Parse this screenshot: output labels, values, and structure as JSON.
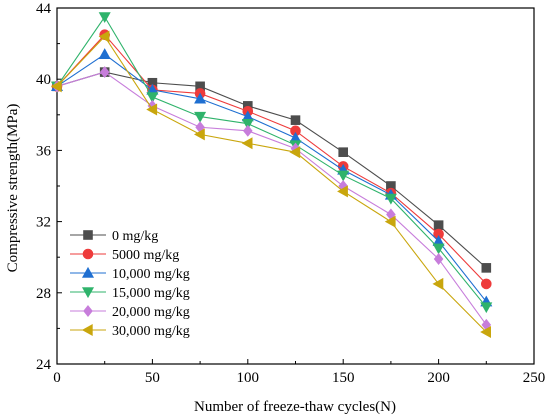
{
  "chart_data": {
    "type": "line",
    "title": "",
    "xlabel": "Number of freeze-thaw cycles(N)",
    "ylabel": "Compressive strength(MPa)",
    "xlim": [
      0,
      250
    ],
    "ylim": [
      24,
      44
    ],
    "xticks": [
      "0",
      "50",
      "100",
      "150",
      "200",
      "250"
    ],
    "yticks": [
      "24",
      "28",
      "32",
      "36",
      "40",
      "44"
    ],
    "x": [
      0,
      25,
      50,
      75,
      100,
      125,
      150,
      175,
      200,
      225
    ],
    "legend_position": "lower-left",
    "grid": false,
    "series": [
      {
        "name": "0 mg/kg",
        "color": "#4d4d4d",
        "marker": "square",
        "values": [
          39.6,
          40.4,
          39.8,
          39.6,
          38.5,
          37.7,
          35.9,
          34.0,
          31.8,
          29.4
        ]
      },
      {
        "name": "5000 mg/kg",
        "color": "#ee3b3b",
        "marker": "circle",
        "values": [
          39.6,
          42.5,
          39.4,
          39.2,
          38.2,
          37.1,
          35.1,
          33.6,
          31.3,
          28.5
        ]
      },
      {
        "name": "10,000 mg/kg",
        "color": "#1f6fd1",
        "marker": "triangle-up",
        "values": [
          39.6,
          41.4,
          39.4,
          38.9,
          37.9,
          36.7,
          34.9,
          33.5,
          30.9,
          27.5
        ]
      },
      {
        "name": "15,000 mg/kg",
        "color": "#2fb36b",
        "marker": "triangle-down",
        "values": [
          39.6,
          43.5,
          39.0,
          37.9,
          37.5,
          36.3,
          34.6,
          33.3,
          30.5,
          27.2
        ]
      },
      {
        "name": "20,000 mg/kg",
        "color": "#c77ddb",
        "marker": "diamond",
        "values": [
          39.6,
          40.4,
          38.5,
          37.3,
          37.1,
          36.1,
          34.0,
          32.4,
          29.9,
          26.2
        ]
      },
      {
        "name": "30,000 mg/kg",
        "color": "#c9a60d",
        "marker": "triangle-left",
        "values": [
          39.6,
          42.4,
          38.3,
          36.9,
          36.4,
          35.9,
          33.7,
          32.0,
          28.5,
          25.8
        ]
      }
    ]
  }
}
